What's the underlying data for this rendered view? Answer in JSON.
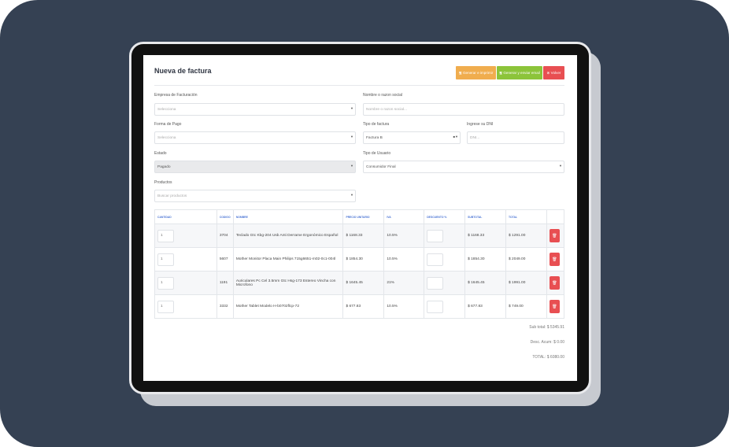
{
  "title": "Nueva de factura",
  "buttons": {
    "print": "🖫 Generar e imprimir",
    "email": "🖫 Generar y enviar email",
    "back": "⊗ Volver"
  },
  "colors": {
    "print": "#f0ad4e",
    "email": "#8cc43a",
    "back": "#e84f52"
  },
  "form": {
    "empresa": {
      "label": "Empresa de Facturación",
      "placeholder": "Selecciona"
    },
    "nombre": {
      "label": "Nombre o razon social",
      "placeholder": "Nombre o razon social..."
    },
    "forma_pago": {
      "label": "Forma de Pago",
      "placeholder": "Selecciona"
    },
    "tipo_factura": {
      "label": "Tipo de factura",
      "value": "Factura B"
    },
    "dni": {
      "label": "Ingrese su DNI",
      "placeholder": "DNI..."
    },
    "estado": {
      "label": "Estado",
      "value": "Pagado"
    },
    "tipo_usuario": {
      "label": "Tipo de Usuario",
      "value": "Consumidor Final"
    },
    "productos": {
      "label": "Productos",
      "placeholder": "Buscar productos"
    }
  },
  "table": {
    "headers": [
      "CANTIDAD",
      "CODIGO",
      "NOMBRE",
      "PRECIO UNITARIO",
      "IVA",
      "DESCUENTO %",
      "SUBTOTAL",
      "TOTAL",
      ""
    ],
    "rows": [
      {
        "qty": "1",
        "code": "3704",
        "name": "Teclado Gtc Kbg-204 Usb Anti Derrame Ergonómico Español",
        "price": "$ 1168.33",
        "iva": "10.5%",
        "subtotal": "$ 1168.33",
        "total": "$ 1291.00"
      },
      {
        "qty": "1",
        "code": "5607",
        "name": "Mother Monitor Placa Main Philips 715g6651-m02-0c1-004l",
        "price": "$ 1854.30",
        "iva": "10.5%",
        "subtotal": "$ 1854.30",
        "total": "$ 2049.00"
      },
      {
        "qty": "1",
        "code": "1191",
        "name": "Auriculares Pc Cel 3.5mm Gtc Hsg-173 Estereo Vincha con Microfono",
        "price": "$ 1645.45",
        "iva": "21%",
        "subtotal": "$ 1645.45",
        "total": "$ 1991.00"
      },
      {
        "qty": "1",
        "code": "3332",
        "name": "Mother Tablet Modelo H-b0702flcp-72",
        "price": "$ 677.83",
        "iva": "10.5%",
        "subtotal": "$ 677.83",
        "total": "$ 749.00"
      }
    ]
  },
  "totals": {
    "subtotal": "Sub total: $ 5345.91",
    "desc": "Desc. Acum: $ 0.00",
    "total": "TOTAL: $ 6080.00"
  }
}
